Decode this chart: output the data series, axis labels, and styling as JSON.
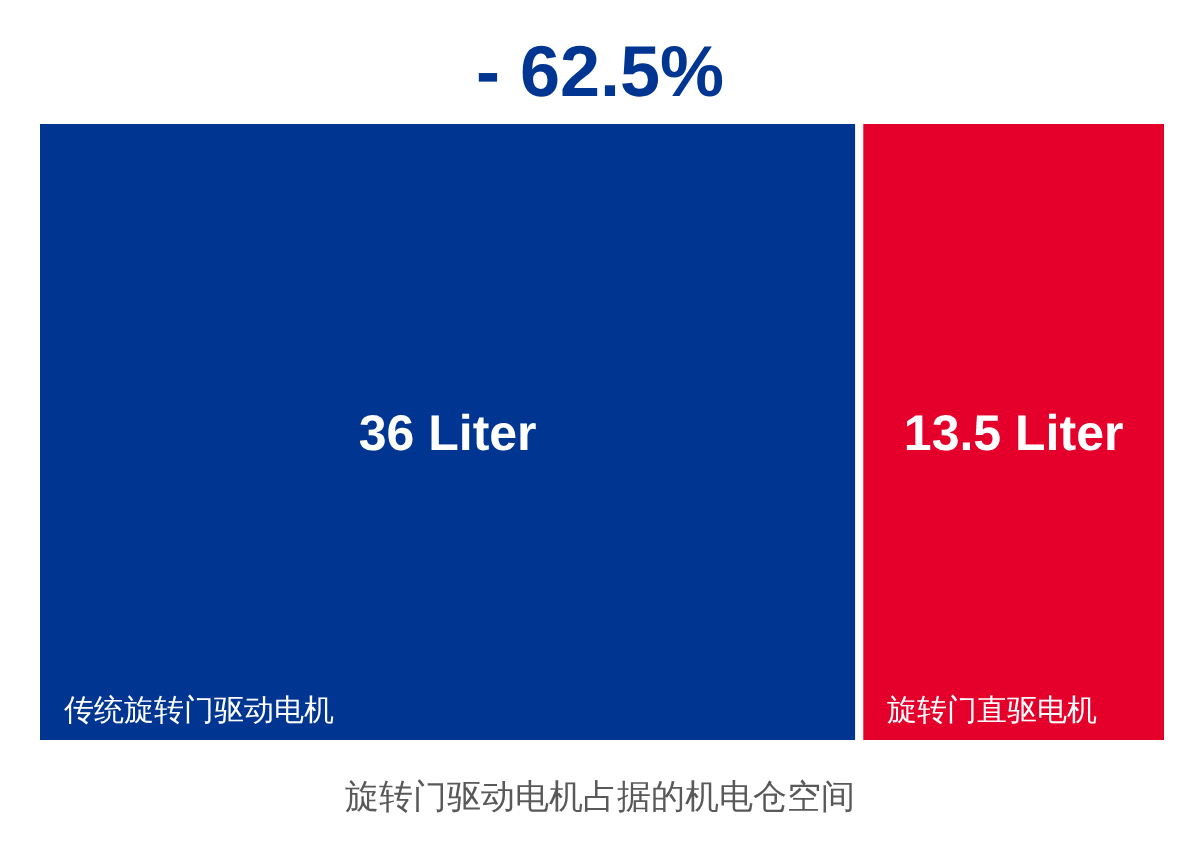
{
  "chart_data": {
    "type": "bar",
    "orientation": "horizontal",
    "stacked": true,
    "title": "- 62.5%",
    "xlabel": "旋转门驱动电机占据的机电仓空间",
    "categories": [
      null
    ],
    "series": [
      {
        "name": "传统旋转门驱动电机",
        "color": "#003591",
        "values": [
          36
        ],
        "value_labels": [
          "36 Liter"
        ]
      },
      {
        "name": "旋转门直驱电机",
        "color": "#e4002b",
        "values": [
          13.5
        ],
        "value_labels": [
          "13.5 Liter"
        ]
      }
    ]
  }
}
